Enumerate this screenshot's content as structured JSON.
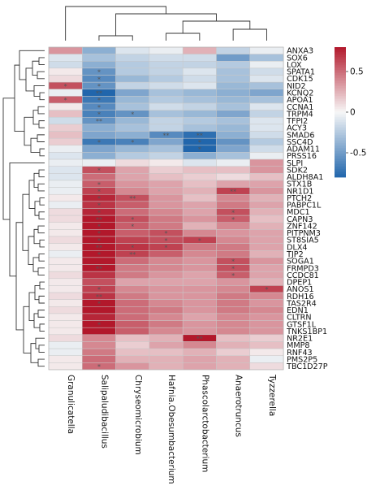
{
  "chart_data": {
    "type": "heatmap",
    "title": "",
    "columns": [
      "Granulicatella",
      "Salipaludibacillus",
      "Chryseomicrobium",
      "Hafnia.Obesumbacterium",
      "Phascolarctobacterium",
      "Anaerotruncus",
      "Tyzzerella"
    ],
    "rows": [
      "ANXA3",
      "SOX6",
      "LOX",
      "SPATA1",
      "CDK15",
      "NID2",
      "KCNQ2",
      "APOA1",
      "CCNA1",
      "TRPM4",
      "TFPI2",
      "ACY3",
      "SMAD6",
      "SSC4D",
      "ADAM11",
      "PRSS16",
      "SLPI",
      "SDK2",
      "ALDH8A1",
      "STX1B",
      "NR1D1",
      "PTCH2",
      "PABPC1L",
      "MDC1",
      "CAPN3",
      "ZNF142",
      "PITPNM3",
      "ST8SIA5",
      "DLX4",
      "TJP2",
      "SOGA1",
      "FRMPD3",
      "CCDC81",
      "DPEP1",
      "ANOS1",
      "RDH16",
      "TAS2R4",
      "EDN1",
      "CLTRN",
      "GTSF1L",
      "TNKS1BP1",
      "NR2E1",
      "MMP8",
      "RNF43",
      "PMS2P5",
      "TBC1D27P"
    ],
    "values": [
      [
        0.35,
        -0.4,
        -0.1,
        -0.05,
        0.25,
        -0.2,
        -0.05
      ],
      [
        -0.1,
        -0.3,
        -0.2,
        -0.15,
        -0.15,
        -0.5,
        -0.3
      ],
      [
        -0.15,
        -0.4,
        -0.25,
        -0.2,
        -0.2,
        -0.25,
        -0.05
      ],
      [
        0.05,
        -0.55,
        -0.25,
        -0.2,
        -0.1,
        -0.3,
        -0.15
      ],
      [
        0.1,
        -0.6,
        -0.35,
        -0.25,
        -0.15,
        -0.3,
        -0.1
      ],
      [
        0.6,
        -0.55,
        -0.2,
        -0.15,
        -0.1,
        -0.35,
        -0.3
      ],
      [
        -0.05,
        -0.85,
        -0.45,
        -0.3,
        -0.35,
        -0.4,
        -0.45
      ],
      [
        0.55,
        -0.7,
        -0.35,
        -0.25,
        -0.3,
        -0.35,
        -0.3
      ],
      [
        0.05,
        -0.6,
        -0.3,
        -0.15,
        -0.2,
        -0.3,
        -0.1
      ],
      [
        0.2,
        -0.65,
        -0.55,
        -0.3,
        -0.35,
        -0.45,
        -0.2
      ],
      [
        -0.15,
        -0.55,
        -0.35,
        -0.2,
        -0.25,
        -0.3,
        -0.1
      ],
      [
        0.15,
        -0.4,
        -0.3,
        -0.2,
        -0.3,
        -0.35,
        -0.1
      ],
      [
        0.2,
        -0.45,
        -0.4,
        -0.6,
        -0.75,
        -0.4,
        -0.15
      ],
      [
        0.15,
        -0.7,
        -0.65,
        -0.45,
        -0.85,
        -0.55,
        -0.25
      ],
      [
        -0.05,
        -0.45,
        -0.35,
        -0.3,
        -0.8,
        -0.45,
        -0.15
      ],
      [
        -0.1,
        -0.4,
        -0.25,
        -0.2,
        -0.4,
        -0.3,
        -0.05
      ],
      [
        -0.05,
        -0.05,
        0.1,
        0.05,
        -0.1,
        -0.05,
        0.35
      ],
      [
        -0.1,
        0.6,
        0.3,
        0.15,
        0.2,
        0.2,
        0.35
      ],
      [
        -0.1,
        0.5,
        0.3,
        0.2,
        0.15,
        0.1,
        0.2
      ],
      [
        -0.05,
        0.55,
        0.35,
        0.3,
        0.2,
        0.3,
        0.3
      ],
      [
        -0.05,
        0.65,
        0.4,
        0.3,
        0.25,
        0.65,
        0.35
      ],
      [
        0.05,
        0.75,
        0.6,
        0.35,
        0.2,
        0.4,
        0.25
      ],
      [
        -0.05,
        0.7,
        0.55,
        0.35,
        0.3,
        0.45,
        0.3
      ],
      [
        0.1,
        0.75,
        0.5,
        0.4,
        0.3,
        0.6,
        0.25
      ],
      [
        0.1,
        0.85,
        0.6,
        0.45,
        0.35,
        0.55,
        0.2
      ],
      [
        0.05,
        0.8,
        0.55,
        0.45,
        0.25,
        0.4,
        0.25
      ],
      [
        0.05,
        0.8,
        0.55,
        0.6,
        0.4,
        0.35,
        0.3
      ],
      [
        0.1,
        0.85,
        0.65,
        0.6,
        0.65,
        0.4,
        0.3
      ],
      [
        0.05,
        0.9,
        0.7,
        0.65,
        0.45,
        0.45,
        0.3
      ],
      [
        -0.05,
        0.85,
        0.65,
        0.55,
        0.4,
        0.45,
        0.25
      ],
      [
        0.05,
        0.8,
        0.5,
        0.4,
        0.35,
        0.6,
        0.35
      ],
      [
        0.05,
        0.8,
        0.45,
        0.4,
        0.35,
        0.6,
        0.3
      ],
      [
        0.1,
        0.7,
        0.45,
        0.35,
        0.3,
        0.55,
        0.3
      ],
      [
        0.05,
        0.6,
        0.3,
        0.3,
        0.3,
        0.35,
        0.25
      ],
      [
        0.05,
        0.65,
        0.4,
        0.35,
        0.35,
        0.4,
        0.65
      ],
      [
        0.1,
        0.7,
        0.45,
        0.35,
        0.35,
        0.45,
        0.4
      ],
      [
        0.05,
        0.8,
        0.5,
        0.4,
        0.35,
        0.45,
        0.35
      ],
      [
        0.1,
        0.8,
        0.5,
        0.45,
        0.35,
        0.45,
        0.4
      ],
      [
        0.05,
        0.75,
        0.5,
        0.4,
        0.3,
        0.4,
        0.35
      ],
      [
        0.05,
        0.85,
        0.55,
        0.45,
        0.35,
        0.4,
        0.35
      ],
      [
        0.05,
        0.85,
        0.55,
        0.4,
        0.35,
        0.4,
        0.35
      ],
      [
        0.1,
        0.4,
        0.2,
        0.25,
        0.8,
        0.2,
        0.15
      ],
      [
        -0.05,
        0.4,
        0.15,
        0.3,
        0.4,
        0.25,
        0.2
      ],
      [
        -0.05,
        0.45,
        0.2,
        0.2,
        0.25,
        0.15,
        0.05
      ],
      [
        0.05,
        0.5,
        0.25,
        0.25,
        0.3,
        0.25,
        -0.05
      ],
      [
        0.05,
        0.5,
        0.35,
        0.25,
        0.3,
        0.25,
        0.1
      ]
    ],
    "significance": [
      [
        "",
        "",
        "",
        "",
        "",
        "",
        ""
      ],
      [
        "",
        "",
        "",
        "",
        "",
        "",
        ""
      ],
      [
        "",
        "",
        "",
        "",
        "",
        "",
        ""
      ],
      [
        "",
        "*",
        "",
        "",
        "",
        "",
        ""
      ],
      [
        "",
        "*",
        "",
        "",
        "",
        "",
        ""
      ],
      [
        "*",
        "*",
        "",
        "",
        "",
        "",
        ""
      ],
      [
        "",
        "**",
        "",
        "",
        "",
        "",
        ""
      ],
      [
        "*",
        "*",
        "",
        "",
        "",
        "",
        ""
      ],
      [
        "",
        "*",
        "",
        "",
        "",
        "",
        ""
      ],
      [
        "",
        "*",
        "*",
        "",
        "",
        "",
        ""
      ],
      [
        "",
        "**",
        "",
        "",
        "",
        "",
        ""
      ],
      [
        "",
        "",
        "",
        "",
        "",
        "",
        ""
      ],
      [
        "",
        "",
        "",
        "**",
        "**",
        "",
        ""
      ],
      [
        "",
        "*",
        "*",
        "",
        "*",
        "",
        ""
      ],
      [
        "",
        "",
        "",
        "",
        "*",
        "",
        ""
      ],
      [
        "",
        "",
        "",
        "",
        "",
        "",
        ""
      ],
      [
        "",
        "",
        "",
        "",
        "",
        "",
        ""
      ],
      [
        "",
        "*",
        "",
        "",
        "",
        "",
        ""
      ],
      [
        "",
        "",
        "",
        "",
        "",
        "",
        ""
      ],
      [
        "",
        "*",
        "",
        "",
        "",
        "",
        ""
      ],
      [
        "",
        "*",
        "",
        "",
        "",
        "**",
        ""
      ],
      [
        "",
        "*",
        "**",
        "",
        "",
        "",
        ""
      ],
      [
        "",
        "*",
        "",
        "",
        "",
        "",
        ""
      ],
      [
        "",
        "*",
        "",
        "",
        "",
        "*",
        ""
      ],
      [
        "",
        "**",
        "*",
        "",
        "",
        "*",
        ""
      ],
      [
        "",
        "*",
        "*",
        "",
        "",
        "",
        ""
      ],
      [
        "",
        "*",
        "",
        "*",
        "",
        "",
        ""
      ],
      [
        "",
        "*",
        "",
        "*",
        "*",
        "",
        ""
      ],
      [
        "",
        "**",
        "*",
        "*",
        "",
        "",
        ""
      ],
      [
        "",
        "*",
        "**",
        "",
        "",
        "",
        ""
      ],
      [
        "",
        "",
        "",
        "",
        "",
        "*",
        ""
      ],
      [
        "",
        "**",
        "",
        "",
        "",
        "*",
        ""
      ],
      [
        "",
        "",
        "",
        "",
        "",
        "*",
        ""
      ],
      [
        "",
        "",
        "",
        "",
        "",
        "",
        ""
      ],
      [
        "",
        "*",
        "",
        "",
        "",
        "",
        "*"
      ],
      [
        "",
        "**",
        "",
        "",
        "",
        "",
        ""
      ],
      [
        "",
        "*",
        "",
        "",
        "",
        "",
        ""
      ],
      [
        "",
        "",
        "",
        "",
        "",
        "",
        ""
      ],
      [
        "",
        "",
        "",
        "",
        "",
        "",
        ""
      ],
      [
        "",
        "*",
        "",
        "",
        "",
        "",
        ""
      ],
      [
        "",
        "",
        "",
        "",
        "",
        "",
        ""
      ],
      [
        "",
        "",
        "",
        "",
        "**",
        "",
        ""
      ],
      [
        "",
        "",
        "",
        "",
        "",
        "",
        ""
      ],
      [
        "",
        "",
        "",
        "",
        "",
        "",
        ""
      ],
      [
        "",
        "",
        "",
        "",
        "",
        "",
        ""
      ],
      [
        "",
        "*",
        "",
        "",
        "",
        "",
        ""
      ]
    ],
    "colorbar": {
      "range": [
        -0.8,
        0.8
      ],
      "ticks": [
        0.5,
        0,
        -0.5
      ],
      "tick_labels": [
        "0.5",
        "0",
        "-0.5"
      ]
    },
    "colors": {
      "negative": "#2166ac",
      "neutral": "#f7f7f7",
      "positive": "#b2182b"
    },
    "row_dendrogram": true,
    "column_dendrogram": true,
    "xlabel": "",
    "ylabel": ""
  }
}
